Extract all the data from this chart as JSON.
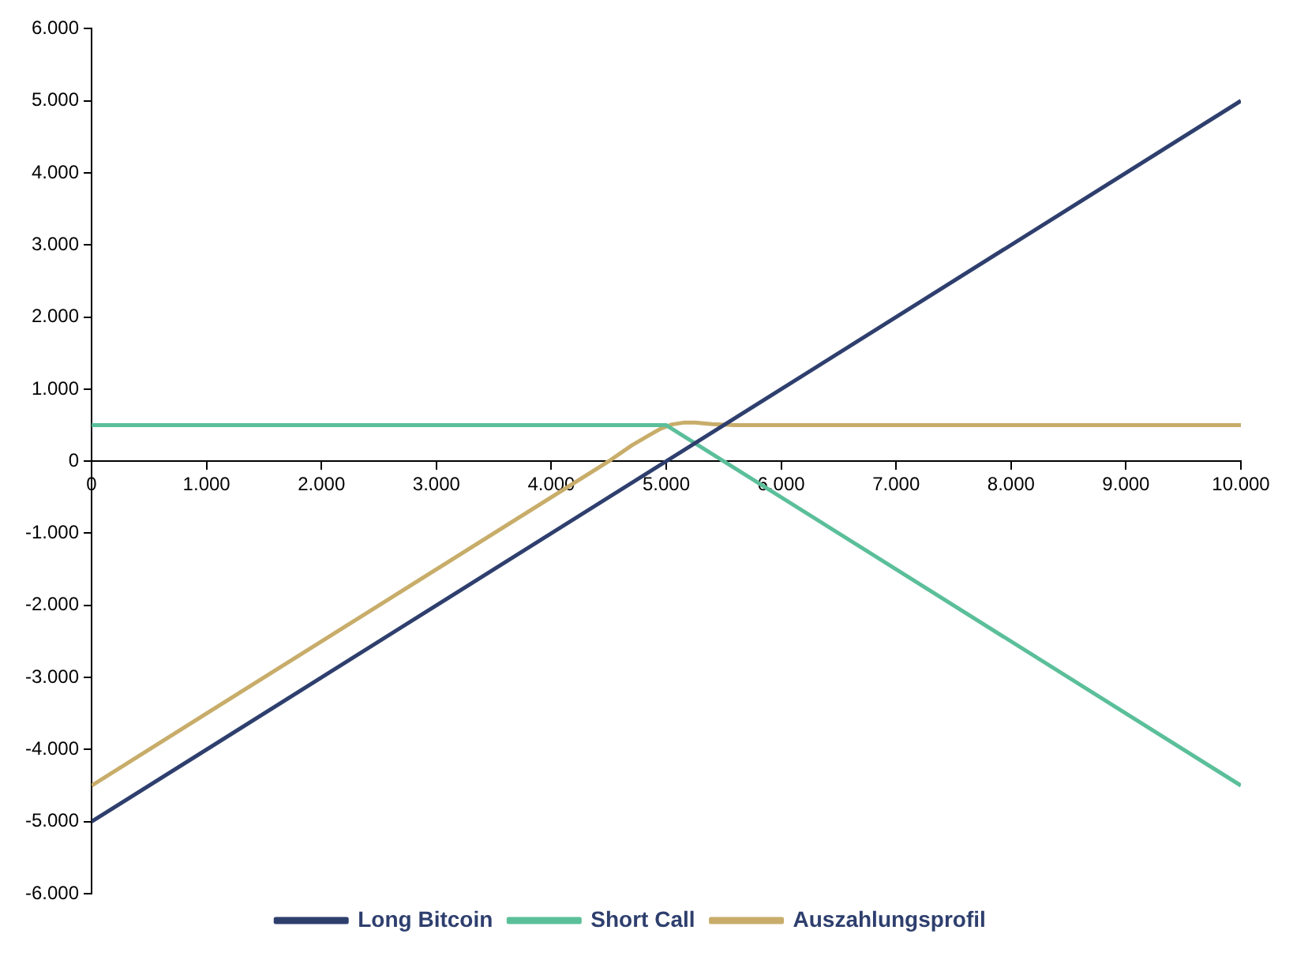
{
  "chart_data": {
    "type": "line",
    "series": [
      {
        "name": "Long Bitcoin",
        "color": "#2e3f6e",
        "x": [
          0,
          10000
        ],
        "values": [
          -5000,
          5000
        ]
      },
      {
        "name": "Short Call",
        "color": "#5bbf9a",
        "x": [
          0,
          5000,
          10000
        ],
        "values": [
          500,
          500,
          -4500
        ]
      },
      {
        "name": "Auszahlungsprofil",
        "color": "#c8ad6a",
        "x": [
          0,
          4500,
          4700,
          4850,
          4950,
          5050,
          5150,
          5250,
          5400,
          5600,
          10000
        ],
        "values": [
          -4500,
          0,
          220,
          360,
          450,
          510,
          535,
          535,
          515,
          500,
          500
        ]
      }
    ],
    "xlim": [
      0,
      10000
    ],
    "xticks": [
      0,
      {
        "value": 1000,
        "label": "1.000"
      },
      {
        "value": 2000,
        "label": "2.000"
      },
      {
        "value": 3000,
        "label": "3.000"
      },
      {
        "value": 4000,
        "label": "4.000"
      },
      {
        "value": 5000,
        "label": "5.000"
      },
      {
        "value": 6000,
        "label": "6.000"
      },
      {
        "value": 7000,
        "label": "7.000"
      },
      {
        "value": 8000,
        "label": "8.000"
      },
      {
        "value": 9000,
        "label": "9.000"
      },
      {
        "value": 10000,
        "label": "10.000"
      }
    ],
    "ylim": [
      -6000,
      6000
    ],
    "yticks": [
      {
        "value": -6000,
        "label": "-6.000"
      },
      {
        "value": -5000,
        "label": "-5.000"
      },
      {
        "value": -4000,
        "label": "-4.000"
      },
      {
        "value": -3000,
        "label": "-3.000"
      },
      {
        "value": -2000,
        "label": "-2.000"
      },
      {
        "value": -1000,
        "label": "-1.000"
      },
      0,
      {
        "value": 1000,
        "label": "1.000"
      },
      {
        "value": 2000,
        "label": "2.000"
      },
      {
        "value": 3000,
        "label": "3.000"
      },
      {
        "value": 4000,
        "label": "4.000"
      },
      {
        "value": 5000,
        "label": "5.000"
      },
      {
        "value": 6000,
        "label": "6.000"
      }
    ],
    "grid": false,
    "legend": "bottom",
    "marker": "none",
    "line_style": "solid"
  }
}
